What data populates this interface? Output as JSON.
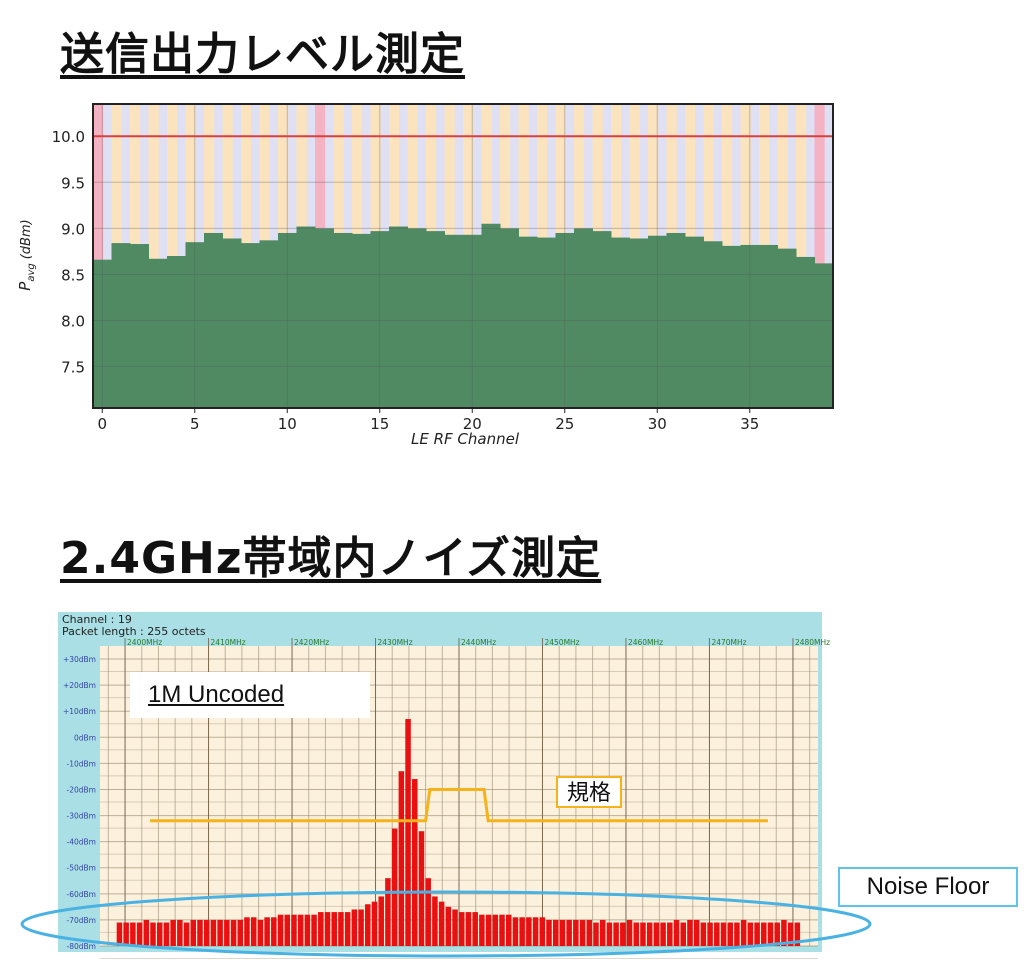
{
  "headings": {
    "tx_power": "送信出力レベル測定",
    "noise": "2.4GHz帯域内ノイズ測定"
  },
  "callouts": {
    "phy": "1M Uncoded",
    "limit": "規格",
    "noise_floor": "Noise Floor"
  },
  "colors": {
    "bar_green": "#4f8a63",
    "limit_line": "#d84040",
    "band_pink": "#f4b3c2",
    "band_orange": "#fbe3bd",
    "band_lavender": "#dfe0f3",
    "spec_line": "#f5b21a",
    "spectrum_bar": "#e81010",
    "ellipse": "#4ab2e2",
    "header_bg": "#a9dfe5",
    "plot_bg": "#fbf1dc"
  },
  "chart_data": [
    {
      "type": "bar",
      "xlabel": "LE RF Channel",
      "ylabel": "Pavg (dBm)",
      "ylabel_main": "P",
      "ylabel_sub": "avg",
      "ylabel_unit": "(dBm)",
      "x_ticks": [
        "0",
        "5",
        "10",
        "15",
        "20",
        "25",
        "30",
        "35"
      ],
      "y_ticks": [
        "7.5",
        "8.0",
        "8.5",
        "9.0",
        "9.5",
        "10.0"
      ],
      "ylim": [
        7.05,
        10.35
      ],
      "limit": 10.0,
      "categories": [
        0,
        1,
        2,
        3,
        4,
        5,
        6,
        7,
        8,
        9,
        10,
        11,
        12,
        13,
        14,
        15,
        16,
        17,
        18,
        19,
        20,
        21,
        22,
        23,
        24,
        25,
        26,
        27,
        28,
        29,
        30,
        31,
        32,
        33,
        34,
        35,
        36,
        37,
        38,
        39
      ],
      "values": [
        8.66,
        8.84,
        8.83,
        8.67,
        8.7,
        8.85,
        8.95,
        8.89,
        8.84,
        8.87,
        8.95,
        9.02,
        9.0,
        8.95,
        8.94,
        8.97,
        9.02,
        9.0,
        8.97,
        8.93,
        8.93,
        9.05,
        9.0,
        8.91,
        8.9,
        8.95,
        9.0,
        8.97,
        8.9,
        8.89,
        8.92,
        8.95,
        8.91,
        8.86,
        8.81,
        8.82,
        8.82,
        8.78,
        8.69,
        8.62
      ],
      "grid": true
    },
    {
      "type": "bar",
      "header_lines": [
        "Channel : 19",
        "Packet length : 255 octets"
      ],
      "freq_ticks": [
        "2400MHz",
        "2410MHz",
        "2420MHz",
        "2430MHz",
        "2440MHz",
        "2450MHz",
        "2460MHz",
        "2470MHz",
        "2480MHz"
      ],
      "level_ticks": [
        "+30dBm",
        "+20dBm",
        "+10dBm",
        "0dBm",
        "-10dBm",
        "-20dBm",
        "-30dBm",
        "-40dBm",
        "-50dBm",
        "-60dBm",
        "-70dBm",
        "-80dBm"
      ],
      "ylim": [
        -80,
        35
      ],
      "xlim": [
        2397,
        2483
      ],
      "spec_limit": [
        {
          "f": 2403.0,
          "v": -32
        },
        {
          "f": 2436.0,
          "v": -32
        },
        {
          "f": 2436.5,
          "v": -20
        },
        {
          "f": 2443.0,
          "v": -20
        },
        {
          "f": 2443.5,
          "v": -32
        },
        {
          "f": 2477.0,
          "v": -32
        }
      ],
      "values": [
        -71,
        -71,
        -71,
        -71,
        -70,
        -71,
        -71,
        -71,
        -70,
        -70,
        -71,
        -70,
        -70,
        -70,
        -70,
        -70,
        -70,
        -70,
        -70,
        -69,
        -69,
        -70,
        -69,
        -69,
        -68,
        -68,
        -68,
        -68,
        -68,
        -68,
        -67,
        -67,
        -67,
        -67,
        -67,
        -66,
        -66,
        -64,
        -63,
        -61,
        -54,
        -35,
        -13,
        7,
        -16,
        -36,
        -54,
        -61,
        -63,
        -65,
        -66,
        -67,
        -67,
        -67,
        -68,
        -68,
        -68,
        -68,
        -68,
        -69,
        -69,
        -69,
        -69,
        -69,
        -70,
        -70,
        -70,
        -70,
        -70,
        -70,
        -70,
        -71,
        -70,
        -71,
        -71,
        -71,
        -70,
        -71,
        -71,
        -71,
        -71,
        -71,
        -71,
        -70,
        -71,
        -70,
        -70,
        -71,
        -71,
        -71,
        -71,
        -71,
        -71,
        -70,
        -71,
        -71,
        -71,
        -71,
        -71,
        -70,
        -71,
        -71
      ]
    }
  ]
}
